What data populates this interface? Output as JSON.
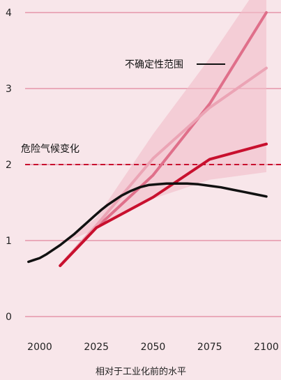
{
  "chart_data": {
    "type": "line",
    "title": "",
    "xlabel": "相对于工业化前的水平",
    "ylabel": "",
    "xlim": [
      1995,
      2100
    ],
    "ylim": [
      0,
      4.2
    ],
    "x_ticks": [
      2000,
      2025,
      2050,
      2075,
      2100
    ],
    "x_tick_labels": [
      "2000",
      "2025",
      "2050",
      "2075",
      "2100"
    ],
    "y_ticks": [
      0,
      1,
      2,
      3,
      4
    ],
    "y_tick_labels": [
      "0",
      "1",
      "2",
      "3",
      "4"
    ],
    "grid": true,
    "legend": "none",
    "threshold": {
      "value": 2,
      "label": "危险气候变化",
      "color": "#c8102e",
      "style": "dashed"
    },
    "uncertainty_label": "不确定性范围",
    "uncertainty_band": {
      "x": [
        2009,
        2025,
        2050,
        2075,
        2100
      ],
      "lower": [
        0.95,
        1.15,
        1.55,
        1.8,
        1.9
      ],
      "upper": [
        0.95,
        1.3,
        2.4,
        3.4,
        4.5
      ],
      "color": "#f2bcc8"
    },
    "observed": {
      "x": [
        1995,
        1997,
        2000,
        2003,
        2006,
        2009,
        2012,
        2015,
        2018,
        2021,
        2024,
        2027,
        2030,
        2033,
        2036,
        2040,
        2044,
        2048,
        2052,
        2056,
        2060,
        2065,
        2070,
        2075,
        2080,
        2085,
        2090,
        2095,
        2100
      ],
      "values": [
        0.72,
        0.74,
        0.77,
        0.82,
        0.88,
        0.94,
        1.01,
        1.08,
        1.16,
        1.24,
        1.32,
        1.4,
        1.47,
        1.53,
        1.59,
        1.65,
        1.7,
        1.73,
        1.74,
        1.75,
        1.75,
        1.75,
        1.74,
        1.72,
        1.7,
        1.67,
        1.64,
        1.61,
        1.58
      ],
      "color": "#111111"
    },
    "series": [
      {
        "x": [
          2009,
          2025,
          2050,
          2075,
          2100
        ],
        "values": [
          0.67,
          1.17,
          1.86,
          2.8,
          4.0
        ],
        "color": "#df6f8a"
      },
      {
        "x": [
          2009,
          2025,
          2050,
          2075,
          2100
        ],
        "values": [
          0.67,
          1.2,
          2.08,
          2.75,
          3.27
        ],
        "color": "#eba4b5"
      },
      {
        "x": [
          2009,
          2025,
          2050,
          2075,
          2100
        ],
        "values": [
          0.67,
          1.17,
          1.57,
          2.07,
          2.27
        ],
        "color": "#c8102e"
      }
    ]
  }
}
